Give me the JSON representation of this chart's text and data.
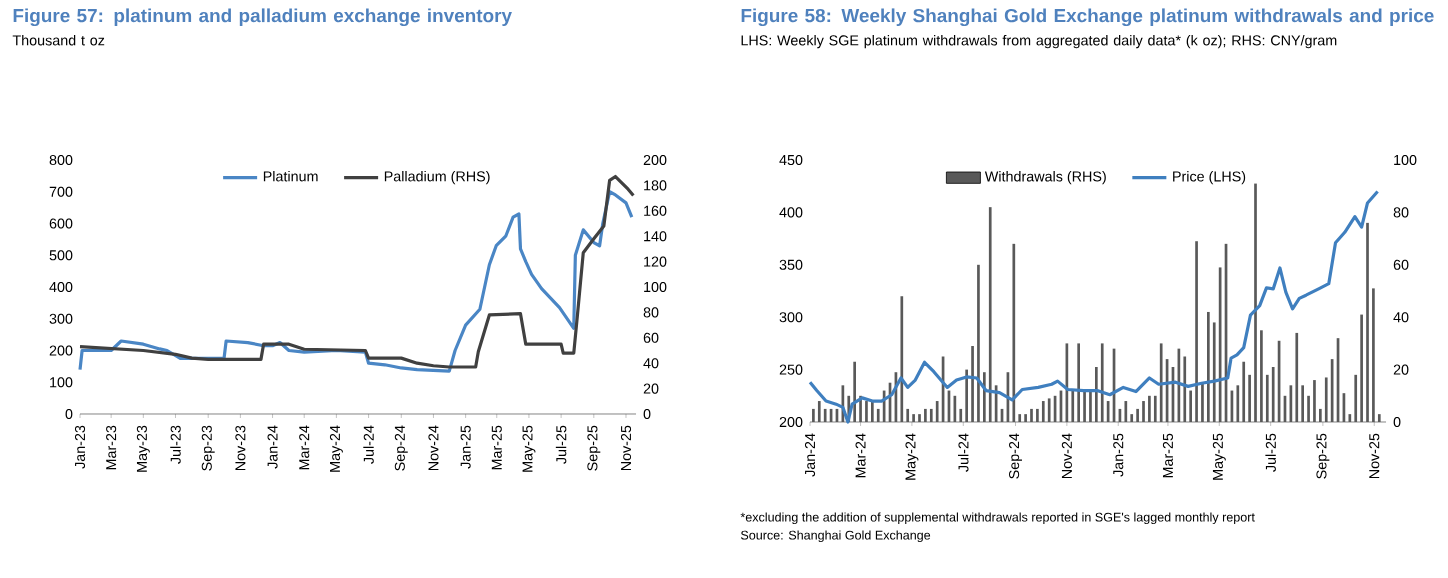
{
  "chart_data": [
    {
      "type": "line",
      "title": "Figure 57: platinum and palladium exchange inventory",
      "subtitle": "Thousand t oz",
      "legend": "top",
      "xlim": [
        "2023-01-01",
        "2025-11-20"
      ],
      "xticks": [
        {
          "value": "2023-01-01",
          "label": "Jan-23"
        },
        {
          "value": "2023-03-01",
          "label": "Mar-23"
        },
        {
          "value": "2023-05-01",
          "label": "May-23"
        },
        {
          "value": "2023-07-01",
          "label": "Jul-23"
        },
        {
          "value": "2023-09-01",
          "label": "Sep-23"
        },
        {
          "value": "2023-11-01",
          "label": "Nov-23"
        },
        {
          "value": "2024-01-01",
          "label": "Jan-24"
        },
        {
          "value": "2024-03-01",
          "label": "Mar-24"
        },
        {
          "value": "2024-05-01",
          "label": "May-24"
        },
        {
          "value": "2024-07-01",
          "label": "Jul-24"
        },
        {
          "value": "2024-09-01",
          "label": "Sep-24"
        },
        {
          "value": "2024-11-01",
          "label": "Nov-24"
        },
        {
          "value": "2025-01-01",
          "label": "Jan-25"
        },
        {
          "value": "2025-03-01",
          "label": "Mar-25"
        },
        {
          "value": "2025-05-01",
          "label": "May-25"
        },
        {
          "value": "2025-07-01",
          "label": "Jul-25"
        },
        {
          "value": "2025-09-01",
          "label": "Sep-25"
        },
        {
          "value": "2025-11-01",
          "label": "Nov-25"
        }
      ],
      "ylim": [
        0,
        800
      ],
      "yticks": [
        0,
        100,
        200,
        300,
        400,
        500,
        600,
        700,
        800
      ],
      "y2lim": [
        0,
        200
      ],
      "y2ticks": [
        0,
        20,
        40,
        60,
        80,
        100,
        120,
        140,
        160,
        180,
        200
      ],
      "series": [
        {
          "name": "Platinum",
          "color": "#4a86c5",
          "x": [
            "2023-01-01",
            "2023-01-05",
            "2023-02-01",
            "2023-03-01",
            "2023-03-20",
            "2023-05-01",
            "2023-06-01",
            "2023-06-15",
            "2023-07-10",
            "2023-10-01",
            "2023-10-05",
            "2023-11-15",
            "2023-12-15",
            "2024-01-01",
            "2024-01-15",
            "2024-02-01",
            "2024-03-01",
            "2024-05-01",
            "2024-06-25",
            "2024-07-01",
            "2024-08-01",
            "2024-09-01",
            "2024-10-01",
            "2024-12-01",
            "2024-12-12",
            "2025-01-01",
            "2025-01-28",
            "2025-02-15",
            "2025-02-28",
            "2025-03-18",
            "2025-04-01",
            "2025-04-12",
            "2025-04-15",
            "2025-04-25",
            "2025-05-06",
            "2025-05-25",
            "2025-06-28",
            "2025-07-25",
            "2025-07-28",
            "2025-08-12",
            "2025-09-01",
            "2025-09-12",
            "2025-09-18",
            "2025-10-01",
            "2025-10-12",
            "2025-11-01",
            "2025-11-12"
          ],
          "values": [
            140,
            200,
            200,
            200,
            230,
            220,
            205,
            200,
            175,
            175,
            230,
            225,
            215,
            215,
            225,
            200,
            195,
            200,
            195,
            160,
            155,
            145,
            140,
            135,
            200,
            280,
            330,
            470,
            530,
            560,
            620,
            630,
            520,
            480,
            440,
            395,
            335,
            270,
            500,
            580,
            540,
            530,
            600,
            700,
            690,
            665,
            620
          ]
        },
        {
          "name": "Palladium (RHS)",
          "color": "#404040",
          "axis": "y2",
          "x": [
            "2023-01-01",
            "2023-05-01",
            "2023-07-01",
            "2023-08-01",
            "2023-09-01",
            "2023-12-10",
            "2023-12-15",
            "2024-02-01",
            "2024-03-01",
            "2024-06-25",
            "2024-07-01",
            "2024-09-01",
            "2024-10-01",
            "2024-11-01",
            "2024-12-01",
            "2025-01-20",
            "2025-01-25",
            "2025-02-15",
            "2025-04-15",
            "2025-04-25",
            "2025-07-01",
            "2025-07-05",
            "2025-07-25",
            "2025-08-01",
            "2025-08-12",
            "2025-09-01",
            "2025-09-20",
            "2025-10-01",
            "2025-10-12",
            "2025-11-05",
            "2025-11-15"
          ],
          "values": [
            53,
            50,
            47,
            44,
            43,
            43,
            55,
            55,
            51,
            50,
            44,
            44,
            40,
            38,
            37,
            37,
            49,
            78,
            79,
            55,
            55,
            48,
            48,
            78,
            127,
            138,
            148,
            184,
            187,
            177,
            172
          ]
        }
      ]
    },
    {
      "type": "bar",
      "title": "Figure 58: Weekly Shanghai Gold Exchange platinum withdrawals and price",
      "subtitle": "LHS: Weekly SGE platinum withdrawals from aggregated daily data* (k oz); RHS: CNY/gram",
      "legend": "top",
      "annotations": [
        "*excluding the addition of supplemental withdrawals reported in SGE's lagged monthly report",
        "Source: Shanghai Gold Exchange"
      ],
      "xlim": [
        "2024-01-01",
        "2025-11-15"
      ],
      "xticks": [
        {
          "value": "2024-01-01",
          "label": "Jan-24"
        },
        {
          "value": "2024-03-01",
          "label": "Mar-24"
        },
        {
          "value": "2024-05-01",
          "label": "May-24"
        },
        {
          "value": "2024-07-01",
          "label": "Jul-24"
        },
        {
          "value": "2024-09-01",
          "label": "Sep-24"
        },
        {
          "value": "2024-11-01",
          "label": "Nov-24"
        },
        {
          "value": "2025-01-01",
          "label": "Jan-25"
        },
        {
          "value": "2025-03-01",
          "label": "Mar-25"
        },
        {
          "value": "2025-05-01",
          "label": "May-25"
        },
        {
          "value": "2025-07-01",
          "label": "Jul-25"
        },
        {
          "value": "2025-09-01",
          "label": "Sep-25"
        },
        {
          "value": "2025-11-01",
          "label": "Nov-25"
        }
      ],
      "ylim": [
        200,
        450
      ],
      "yticks": [
        200,
        250,
        300,
        350,
        400,
        450
      ],
      "y2lim": [
        0,
        100
      ],
      "y2ticks": [
        0,
        20,
        40,
        60,
        80,
        100
      ],
      "series": [
        {
          "name": "Withdrawals (RHS)",
          "type": "bar",
          "axis": "y2",
          "color": "#595959",
          "x": [
            "2024-01-05",
            "2024-01-12",
            "2024-01-19",
            "2024-01-26",
            "2024-02-02",
            "2024-02-09",
            "2024-02-16",
            "2024-02-23",
            "2024-03-01",
            "2024-03-08",
            "2024-03-15",
            "2024-03-22",
            "2024-03-29",
            "2024-04-05",
            "2024-04-12",
            "2024-04-19",
            "2024-04-26",
            "2024-05-03",
            "2024-05-10",
            "2024-05-17",
            "2024-05-24",
            "2024-05-31",
            "2024-06-07",
            "2024-06-14",
            "2024-06-21",
            "2024-06-28",
            "2024-07-05",
            "2024-07-12",
            "2024-07-19",
            "2024-07-26",
            "2024-08-02",
            "2024-08-09",
            "2024-08-16",
            "2024-08-23",
            "2024-08-30",
            "2024-09-06",
            "2024-09-13",
            "2024-09-20",
            "2024-09-27",
            "2024-10-04",
            "2024-10-11",
            "2024-10-18",
            "2024-10-25",
            "2024-11-01",
            "2024-11-08",
            "2024-11-15",
            "2024-11-22",
            "2024-11-29",
            "2024-12-06",
            "2024-12-13",
            "2024-12-20",
            "2024-12-27",
            "2025-01-03",
            "2025-01-10",
            "2025-01-17",
            "2025-01-24",
            "2025-01-31",
            "2025-02-07",
            "2025-02-14",
            "2025-02-21",
            "2025-02-28",
            "2025-03-07",
            "2025-03-14",
            "2025-03-21",
            "2025-03-28",
            "2025-04-04",
            "2025-04-11",
            "2025-04-18",
            "2025-04-25",
            "2025-05-02",
            "2025-05-09",
            "2025-05-16",
            "2025-05-23",
            "2025-05-30",
            "2025-06-06",
            "2025-06-13",
            "2025-06-20",
            "2025-06-27",
            "2025-07-04",
            "2025-07-11",
            "2025-07-18",
            "2025-07-25",
            "2025-08-01",
            "2025-08-08",
            "2025-08-15",
            "2025-08-22",
            "2025-08-29",
            "2025-09-05",
            "2025-09-12",
            "2025-09-19",
            "2025-09-26",
            "2025-10-03",
            "2025-10-10",
            "2025-10-17",
            "2025-10-24",
            "2025-10-31",
            "2025-11-07"
          ],
          "values": [
            5,
            8,
            5,
            5,
            5,
            14,
            10,
            23,
            10,
            8,
            8,
            5,
            12,
            15,
            19,
            48,
            5,
            3,
            3,
            5,
            5,
            8,
            25,
            12,
            10,
            5,
            20,
            29,
            60,
            19,
            82,
            14,
            5,
            19,
            68,
            3,
            3,
            5,
            5,
            8,
            9,
            10,
            12,
            30,
            12,
            30,
            12,
            12,
            21,
            30,
            8,
            28,
            5,
            8,
            3,
            5,
            8,
            10,
            10,
            30,
            24,
            21,
            28,
            25,
            12,
            69,
            15,
            42,
            38,
            59,
            68,
            12,
            14,
            23,
            18,
            91,
            35,
            18,
            21,
            31,
            10,
            14,
            34,
            14,
            10,
            16,
            5,
            17,
            24,
            32,
            11,
            3,
            18,
            41,
            76,
            51,
            3
          ]
        },
        {
          "name": "Price (LHS)",
          "type": "line",
          "color": "#3f7fbf",
          "x": [
            "2024-01-01",
            "2024-01-09",
            "2024-01-20",
            "2024-02-01",
            "2024-02-09",
            "2024-02-15",
            "2024-02-20",
            "2024-03-03",
            "2024-03-15",
            "2024-03-26",
            "2024-04-07",
            "2024-04-18",
            "2024-04-26",
            "2024-05-05",
            "2024-05-16",
            "2024-05-27",
            "2024-06-12",
            "2024-06-23",
            "2024-07-05",
            "2024-07-17",
            "2024-07-28",
            "2024-08-13",
            "2024-08-28",
            "2024-09-09",
            "2024-09-28",
            "2024-10-14",
            "2024-10-21",
            "2024-11-02",
            "2024-11-21",
            "2024-12-07",
            "2024-12-22",
            "2025-01-07",
            "2025-01-22",
            "2025-02-07",
            "2025-02-18",
            "2025-03-10",
            "2025-03-25",
            "2025-04-10",
            "2025-04-25",
            "2025-05-11",
            "2025-05-15",
            "2025-05-22",
            "2025-05-30",
            "2025-06-07",
            "2025-06-18",
            "2025-06-26",
            "2025-07-04",
            "2025-07-12",
            "2025-07-19",
            "2025-07-27",
            "2025-08-04",
            "2025-08-12",
            "2025-08-27",
            "2025-09-08",
            "2025-09-16",
            "2025-09-27",
            "2025-10-09",
            "2025-10-17",
            "2025-10-24",
            "2025-11-05"
          ],
          "values": [
            238,
            230,
            220,
            217,
            214,
            200,
            217,
            223,
            220,
            220,
            226,
            242,
            233,
            240,
            257,
            248,
            233,
            240,
            243,
            242,
            230,
            228,
            221,
            231,
            233,
            236,
            239,
            231,
            230,
            230,
            226,
            233,
            229,
            242,
            236,
            238,
            234,
            237,
            239,
            242,
            261,
            264,
            271,
            302,
            311,
            328,
            327,
            347,
            324,
            308,
            318,
            321,
            327,
            332,
            371,
            381,
            396,
            386,
            409,
            420
          ]
        }
      ]
    }
  ]
}
